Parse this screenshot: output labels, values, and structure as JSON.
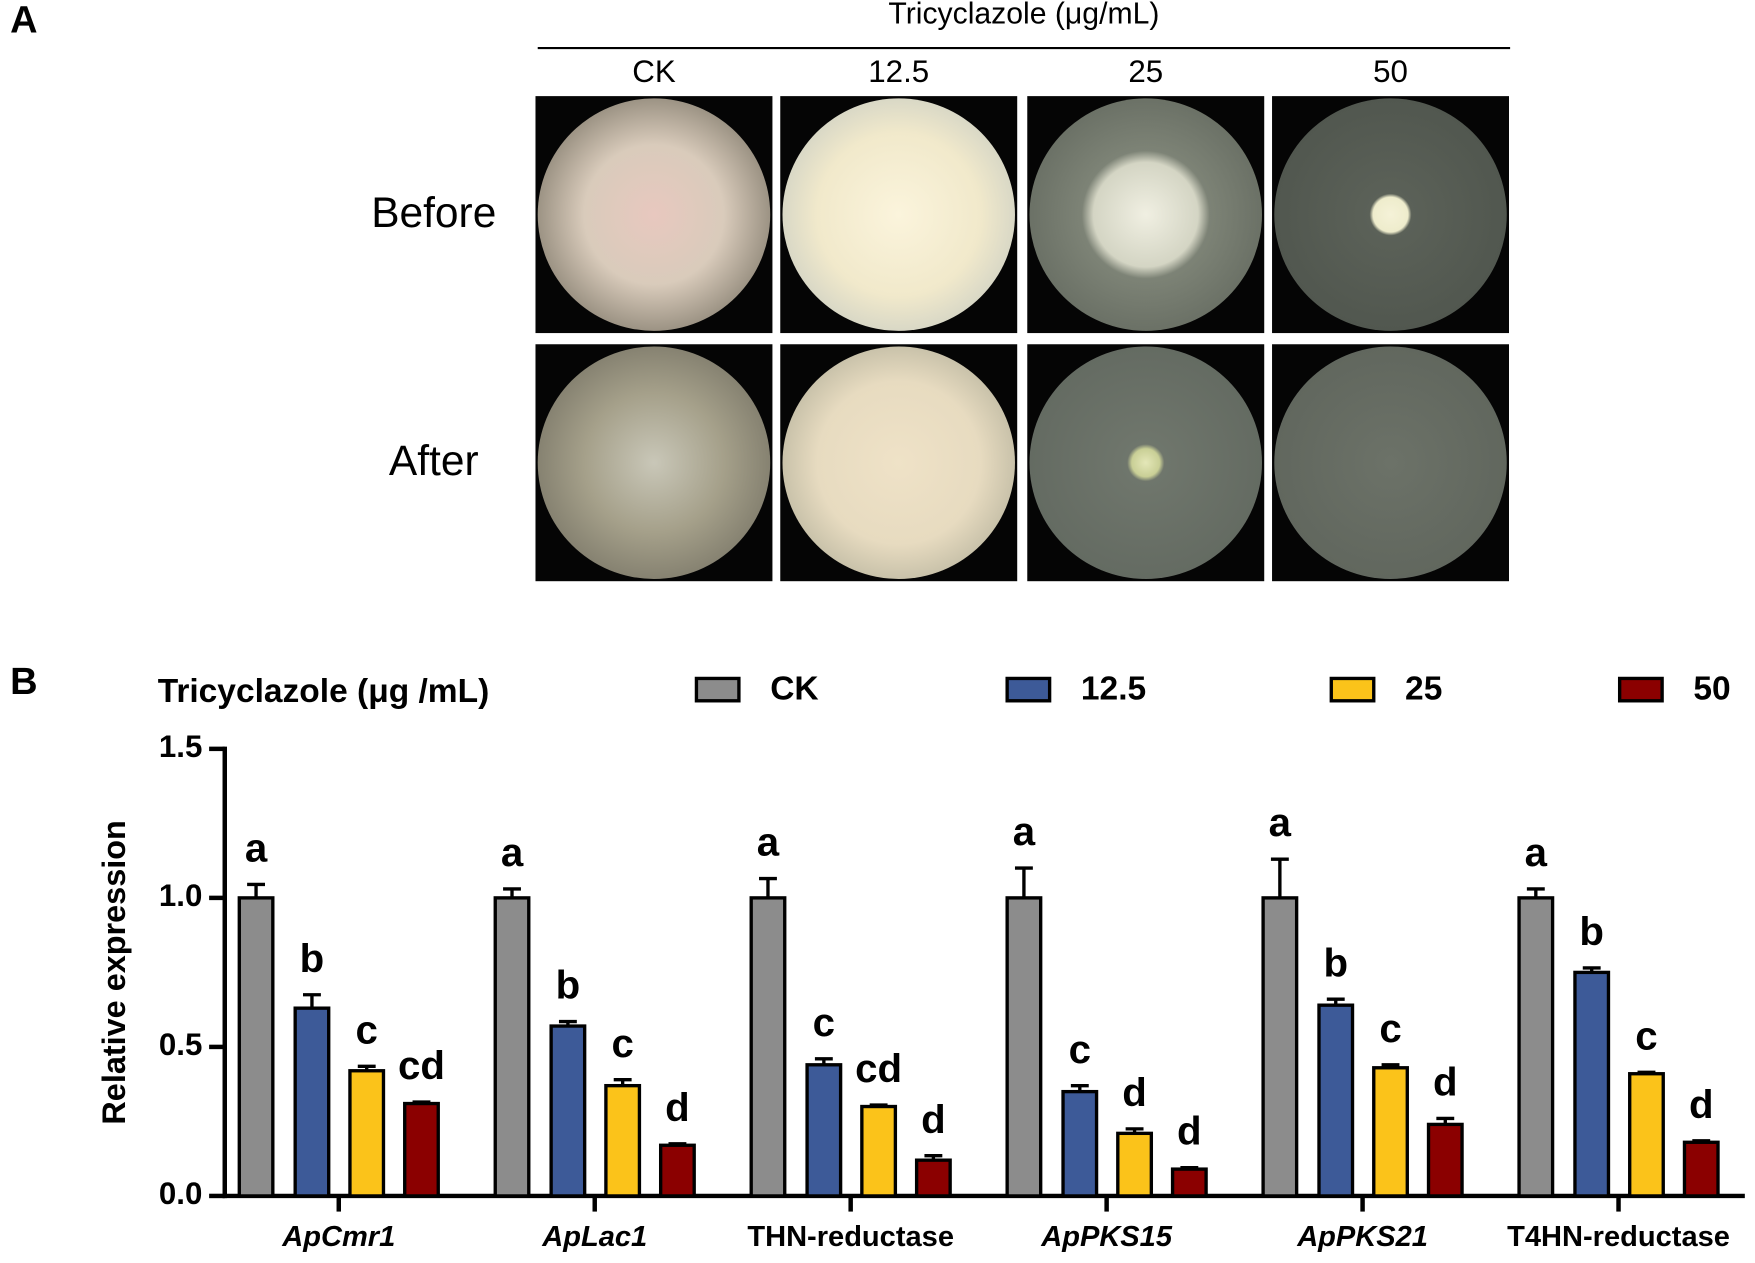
{
  "panel_a": {
    "label": "A",
    "header": "Tricyclazole (μg/mL)",
    "columns": [
      "CK",
      "12.5",
      "25",
      "50"
    ],
    "rows": [
      "Before",
      "After"
    ]
  },
  "chart_data": {
    "type": "bar",
    "panel_label": "B",
    "legend_title": "Tricyclazole (μg /mL)",
    "y_label": "Relative expression",
    "categories": [
      "ApCmr1",
      "ApLac1",
      "THN-reductase",
      "ApPKS15",
      "ApPKS21",
      "T4HN-reductase"
    ],
    "italic_categories": [
      true,
      true,
      false,
      true,
      true,
      false
    ],
    "series": [
      {
        "name": "CK",
        "color": "#8c8c8c",
        "values": [
          1,
          1,
          1,
          1,
          1,
          1
        ],
        "errors": [
          0.045,
          0.03,
          0.065,
          0.1,
          0.13,
          0.03
        ],
        "letters": [
          "a",
          "a",
          "a",
          "a",
          "a",
          "a"
        ]
      },
      {
        "name": "12.5",
        "color": "#3d5a98",
        "values": [
          0.63,
          0.57,
          0.44,
          0.35,
          0.64,
          0.75
        ],
        "errors": [
          0.045,
          0.015,
          0.02,
          0.02,
          0.02,
          0.015
        ],
        "letters": [
          "b",
          "b",
          "c",
          "c",
          "b",
          "b"
        ]
      },
      {
        "name": "25",
        "color": "#fbc31a",
        "values": [
          0.42,
          0.37,
          0.3,
          0.21,
          0.43,
          0.41
        ],
        "errors": [
          0.015,
          0.02,
          0.005,
          0.015,
          0.01,
          0.005
        ],
        "letters": [
          "c",
          "c",
          "cd",
          "d",
          "c",
          "c"
        ]
      },
      {
        "name": "50",
        "color": "#8b0000",
        "values": [
          0.31,
          0.17,
          0.12,
          0.09,
          0.24,
          0.18
        ],
        "errors": [
          0.005,
          0.005,
          0.015,
          0.005,
          0.02,
          0.005
        ],
        "letters": [
          "cd",
          "d",
          "d",
          "d",
          "d",
          "d"
        ]
      }
    ],
    "ylim": [
      0,
      1.5
    ],
    "yticks": [
      {
        "value": 0,
        "label": "0.0"
      },
      {
        "value": 0.5,
        "label": "0.5"
      },
      {
        "value": 1,
        "label": "1.0"
      },
      {
        "value": 1.5,
        "label": "1.5"
      }
    ]
  }
}
